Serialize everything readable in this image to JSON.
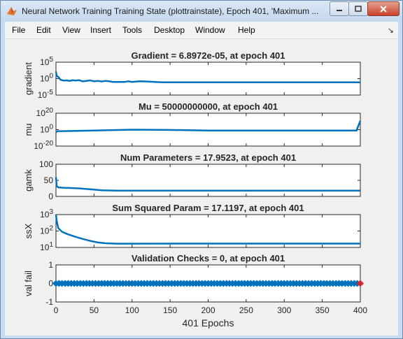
{
  "window": {
    "title": "Neural Network Training Training State (plottrainstate), Epoch 401, 'Maximum ...",
    "menu": [
      "File",
      "Edit",
      "View",
      "Insert",
      "Tools",
      "Desktop",
      "Window",
      "Help"
    ],
    "dock_glyph": "↘"
  },
  "colors": {
    "series": "#0072bd",
    "best_marker": "#d62728",
    "window_bg": "#c7dcef",
    "figure_bg": "#f0f0f0"
  },
  "chart_data": [
    {
      "type": "line",
      "title": "Gradient = 6.8972e-05, at epoch 401",
      "ylabel": "gradient",
      "yscale": "log",
      "ylim": [
        1e-10,
        100000.0
      ],
      "yticks": [
        "10^5",
        "10^0",
        "10^-5"
      ],
      "xlim": [
        0,
        400
      ],
      "x": [
        0,
        1,
        3,
        6,
        10,
        14,
        18,
        22,
        26,
        30,
        35,
        40,
        45,
        50,
        55,
        60,
        65,
        70,
        75,
        80,
        85,
        90,
        95,
        100,
        110,
        120,
        130,
        140,
        200,
        300,
        400
      ],
      "y": [
        5,
        0.05,
        0.02,
        0.001,
        0.0004,
        0.0005,
        0.0003,
        0.0006,
        0.0004,
        0.0007,
        0.0002,
        0.0003,
        0.0005,
        0.0002,
        0.0003,
        0.00015,
        0.0003,
        0.0002,
        0.0001,
        0.0001,
        0.0001,
        9e-05,
        0.0002,
        0.0001,
        0.0002,
        0.00015,
        0.0001,
        7e-05,
        7e-05,
        7e-05,
        6.9e-05
      ]
    },
    {
      "type": "line",
      "title": "Mu = 50000000000, at epoch 401",
      "ylabel": "mu",
      "yscale": "log",
      "ylim": [
        1e-20,
        1e+20
      ],
      "yticks": [
        "10^20",
        "10^0",
        "10^-20"
      ],
      "xlim": [
        0,
        400
      ],
      "x": [
        0,
        2,
        50,
        100,
        150,
        200,
        300,
        395,
        398,
        400
      ],
      "y": [
        0.001,
        0.01,
        0.1,
        1,
        0.5,
        0.1,
        0.1,
        0.1,
        1000000,
        50000000000
      ]
    },
    {
      "type": "line",
      "title": "Num Parameters = 17.9523, at epoch 401",
      "ylabel": "gamk",
      "ylim": [
        0,
        100
      ],
      "yticks": [
        "100",
        "50",
        "0"
      ],
      "xlim": [
        0,
        400
      ],
      "x": [
        0,
        1,
        3,
        10,
        20,
        30,
        40,
        50,
        60,
        80,
        100,
        200,
        300,
        400
      ],
      "y": [
        60,
        32,
        28,
        27,
        26,
        25,
        23,
        21,
        19,
        18,
        18,
        18,
        18,
        17.95
      ]
    },
    {
      "type": "line",
      "title": "Sum Squared Param = 17.1197, at epoch 401",
      "ylabel": "ssX",
      "yscale": "log",
      "ylim": [
        10,
        1000
      ],
      "yticks": [
        "10^3",
        "10^2",
        "10^1"
      ],
      "xlim": [
        0,
        400
      ],
      "x": [
        0,
        1,
        3,
        8,
        15,
        25,
        35,
        45,
        55,
        65,
        80,
        100,
        200,
        300,
        400
      ],
      "y": [
        1000,
        400,
        150,
        90,
        65,
        45,
        33,
        25,
        20,
        18,
        17,
        17,
        17.1,
        17.1,
        17.12
      ]
    },
    {
      "type": "scatter",
      "title": "Validation Checks = 0, at epoch 401",
      "ylabel": "val fail",
      "ylim": [
        -1,
        1
      ],
      "yticks": [
        "1",
        "0",
        "-1"
      ],
      "xlim": [
        0,
        400
      ],
      "xticks": [
        "0",
        "50",
        "100",
        "150",
        "200",
        "250",
        "300",
        "350",
        "400"
      ],
      "xlabel": "401 Epochs",
      "value": 0,
      "best_epoch": 400
    }
  ]
}
